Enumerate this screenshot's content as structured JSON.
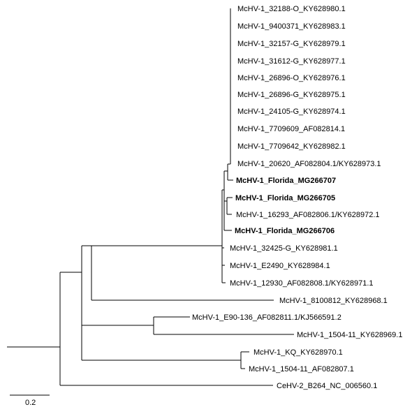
{
  "figure": {
    "type": "phylogenetic-tree",
    "scale_bar_label": "0.2",
    "taxa": [
      {
        "id": "t1",
        "label": "McHV-1_32188-O_KY628980.1",
        "bold": false
      },
      {
        "id": "t2",
        "label": "McHV-1_9400371_KY628983.1",
        "bold": false
      },
      {
        "id": "t3",
        "label": "McHV-1_32157-G_KY628979.1",
        "bold": false
      },
      {
        "id": "t4",
        "label": "McHV-1_31612-G_KY628977.1",
        "bold": false
      },
      {
        "id": "t5",
        "label": "McHV-1_26896-O_KY628976.1",
        "bold": false
      },
      {
        "id": "t6",
        "label": "McHV-1_26896-G_KY628975.1",
        "bold": false
      },
      {
        "id": "t7",
        "label": "McHV-1_24105-G_KY628974.1",
        "bold": false
      },
      {
        "id": "t8",
        "label": "McHV-1_7709609_AF082814.1",
        "bold": false
      },
      {
        "id": "t9",
        "label": "McHV-1_7709642_KY628982.1",
        "bold": false
      },
      {
        "id": "t10",
        "label": "McHV-1_20620_AF082804.1/KY628973.1",
        "bold": false
      },
      {
        "id": "t11",
        "label": "McHV-1_Florida_MG266707",
        "bold": true
      },
      {
        "id": "t12",
        "label": "McHV-1_Florida_MG266705",
        "bold": true
      },
      {
        "id": "t13",
        "label": "McHV-1_16293_AF082806.1/KY628972.1",
        "bold": false
      },
      {
        "id": "t14",
        "label": "McHV-1_Florida_MG266706",
        "bold": true
      },
      {
        "id": "t15",
        "label": "McHV-1_32425-G_KY628981.1",
        "bold": false
      },
      {
        "id": "t16",
        "label": "McHV-1_E2490_KY628984.1",
        "bold": false
      },
      {
        "id": "t17",
        "label": "McHV-1_12930_AF082808.1/KY628971.1",
        "bold": false
      },
      {
        "id": "t18",
        "label": "McHV-1_8100812_KY628968.1",
        "bold": false
      },
      {
        "id": "t19",
        "label": "McHV-1_E90-136_AF082811.1/KJ566591.2",
        "bold": false
      },
      {
        "id": "t20",
        "label": "McHV-1_1504-11_KY628969.1",
        "bold": false
      },
      {
        "id": "t21",
        "label": "McHV-1_KQ_KY628970.1",
        "bold": false
      },
      {
        "id": "t22",
        "label": "McHV-1_1504-11_AF082807.1",
        "bold": false
      },
      {
        "id": "t23",
        "label": "CeHV-2_B264_NC_006560.1",
        "bold": false
      }
    ]
  }
}
